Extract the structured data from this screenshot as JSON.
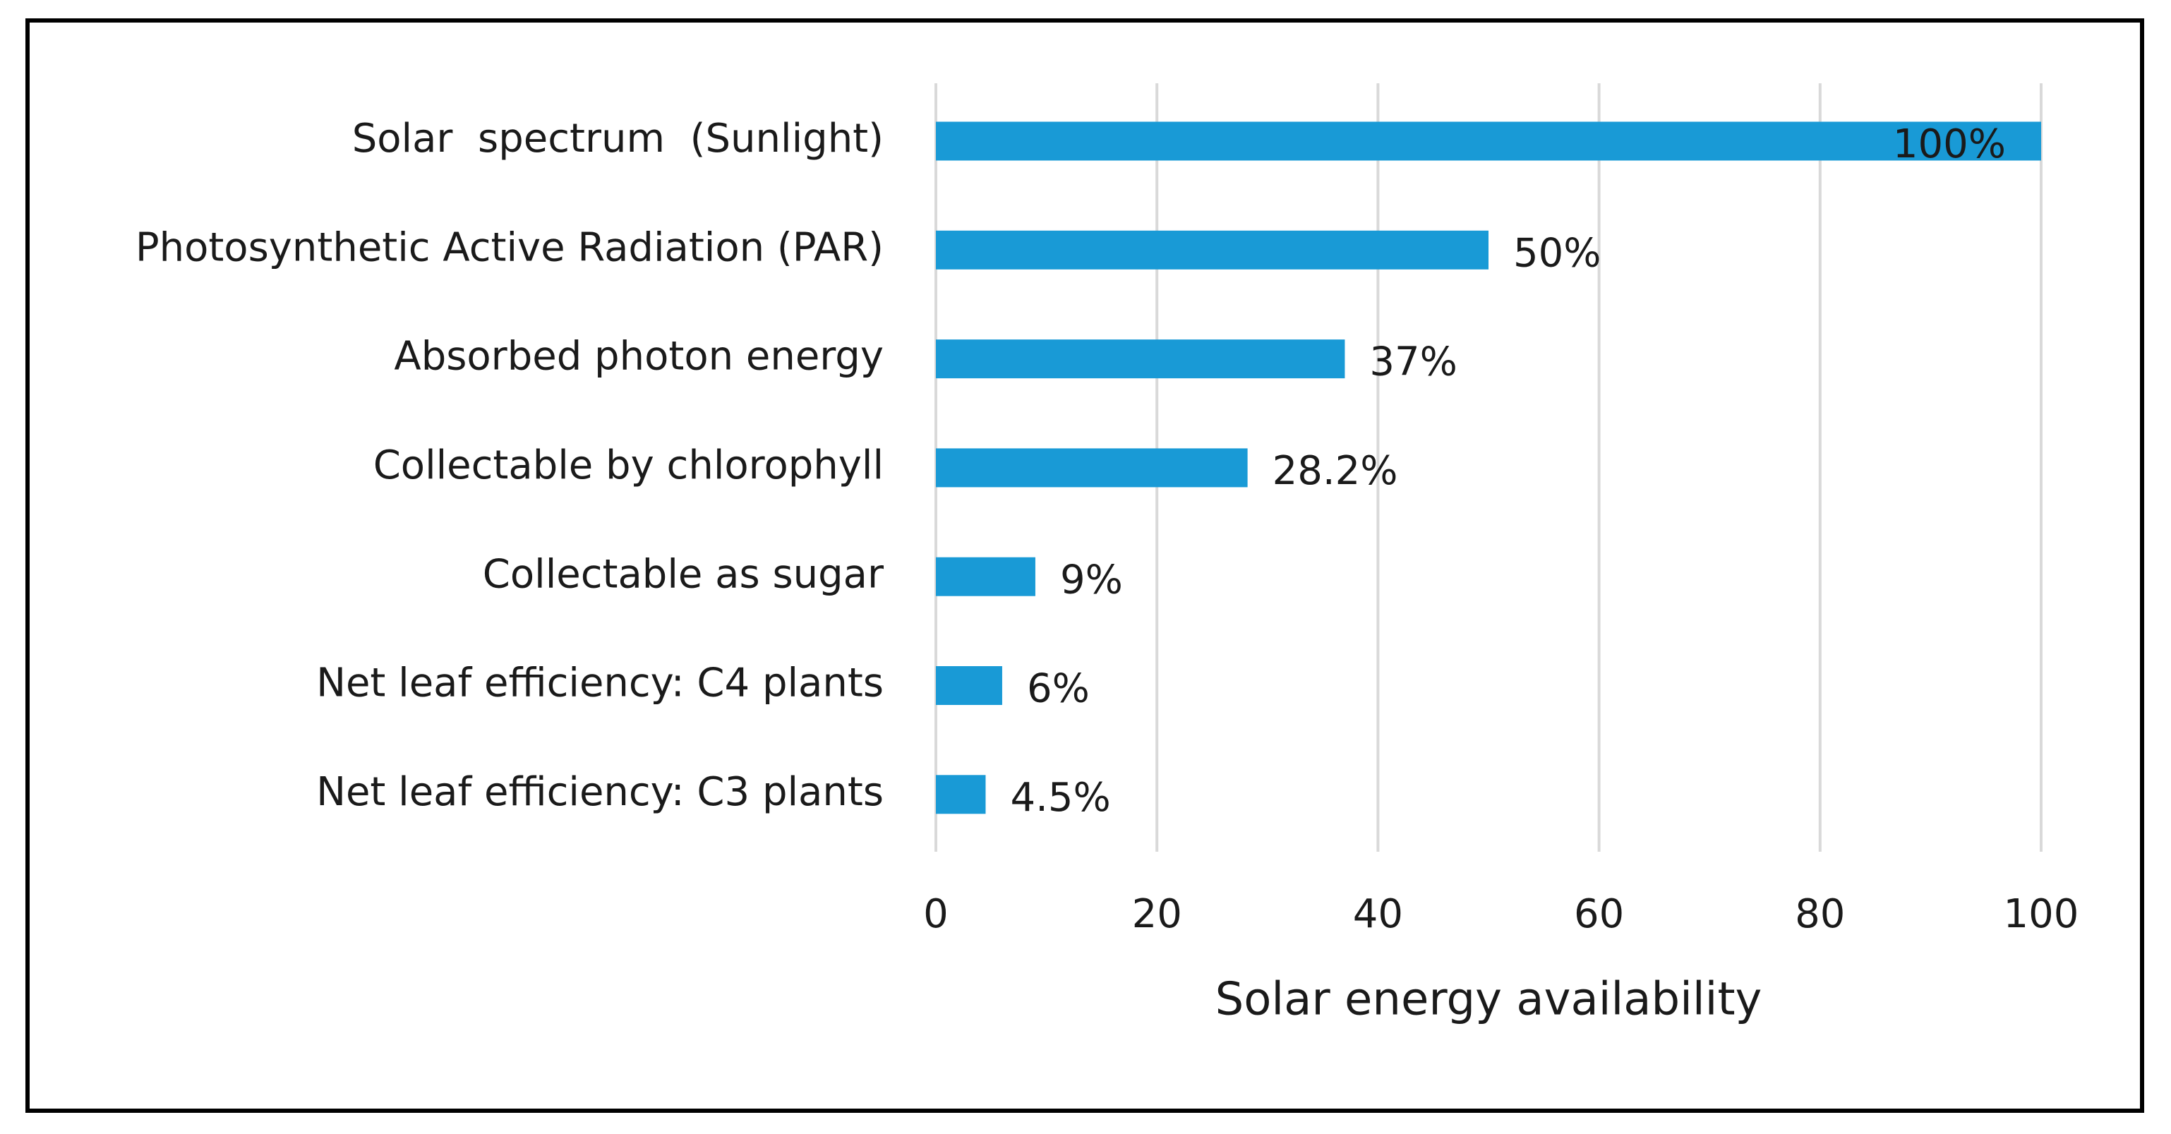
{
  "chart_data": {
    "type": "bar",
    "orientation": "horizontal",
    "categories": [
      "Solar  spectrum  (Sunlight)",
      "Photosynthetic Active Radiation (PAR)",
      "Absorbed photon energy",
      "Collectable by chlorophyll",
      "Collectable as sugar",
      "Net leaf efficiency: C4 plants",
      "Net leaf efficiency: C3 plants"
    ],
    "values": [
      100,
      50,
      37,
      28.2,
      9,
      6,
      4.5
    ],
    "value_labels": [
      "100%",
      "50%",
      "37%",
      "28.2%",
      "9%",
      "6%",
      "4.5%"
    ],
    "color": "#199ad6",
    "x_label": "Solar energy availability",
    "xlim": [
      0,
      100
    ],
    "xticks": [
      0,
      20,
      40,
      60,
      80,
      100
    ],
    "grid": true
  }
}
